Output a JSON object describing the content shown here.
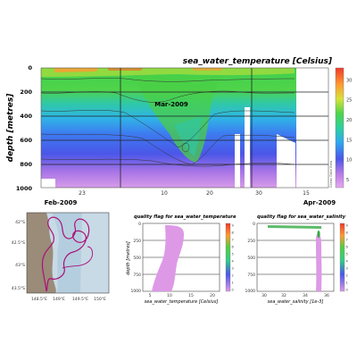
{
  "chart_data": [
    {
      "type": "heatmap",
      "title": "sea_water_temperature [Celsius]",
      "ylabel": "depth [metres]",
      "ylim": [
        1000,
        0
      ],
      "y_ticks": [
        0,
        200,
        400,
        600,
        800,
        1000
      ],
      "x_day_ticks": [
        "23",
        "10",
        "20",
        "30",
        "15"
      ],
      "x_month_ticks": [
        "Feb-2009",
        "Mar-2009",
        "Apr-2009"
      ],
      "colorbar": {
        "ticks": [
          5,
          10,
          15,
          20,
          25,
          30
        ],
        "range": [
          3,
          33
        ],
        "label": "Ocean Data View"
      },
      "grid": true,
      "colors": {
        "warm": "#ff9933",
        "mid": "#55cc44",
        "cool": "#3366ee",
        "cold": "#bb66dd"
      }
    },
    {
      "type": "scatter",
      "title": "track",
      "y_ticks": [
        "42°S",
        "42.5°S",
        "43°S",
        "43.5°S"
      ],
      "x_ticks": [
        "148.5°E",
        "149°E",
        "149.5°E",
        "150°E"
      ],
      "colors": {
        "track": "#aa1177",
        "land": "#9b8b79",
        "sea": "#c8dae6"
      }
    },
    {
      "type": "scatter",
      "title": "quality flag for sea_water_temperature",
      "xlabel": "sea_water_temperature [Celsius]",
      "ylabel": "depth [metres]",
      "y_ticks": [
        0,
        250,
        500,
        750,
        1000
      ],
      "x_ticks": [
        5,
        10,
        15,
        20
      ],
      "colorbar": {
        "ticks": [
          0,
          1,
          2,
          3,
          4,
          5,
          6,
          7,
          8,
          9
        ],
        "label": "Ocean Data View"
      },
      "colors": {
        "points": "#dd99e6"
      }
    },
    {
      "type": "scatter",
      "title": "quality flag for sea_water_salinity",
      "xlabel": "sea_water_salinity [1e-3]",
      "ylabel": "",
      "y_ticks": [
        0,
        250,
        500,
        750,
        1000
      ],
      "x_ticks": [
        30,
        32,
        34,
        36
      ],
      "colorbar": {
        "ticks": [
          0,
          1,
          2,
          3,
          4,
          5,
          6,
          7,
          8,
          9
        ],
        "label": "Ocean Data View"
      },
      "colors": {
        "points": "#dd99e6",
        "surface": "#33aa44"
      }
    }
  ]
}
